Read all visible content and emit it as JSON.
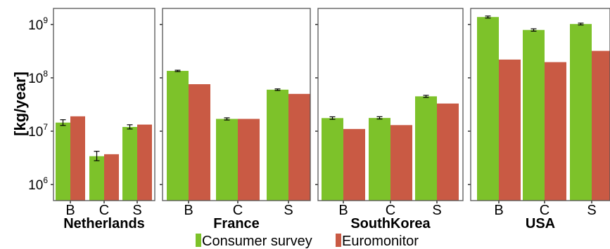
{
  "chart_data": {
    "type": "bar",
    "ylabel": "[kg/year]",
    "yscale": "log",
    "ylim": [
      500000,
      2000000000
    ],
    "yticks": [
      {
        "value": 1000000,
        "base": "10",
        "exp": "6"
      },
      {
        "value": 10000000,
        "base": "10",
        "exp": "7"
      },
      {
        "value": 100000000,
        "base": "10",
        "exp": "8"
      },
      {
        "value": 1000000000,
        "base": "10",
        "exp": "9"
      }
    ],
    "categories": [
      "B",
      "C",
      "S"
    ],
    "series": [
      {
        "name": "Consumer survey",
        "color": "#7dc22a"
      },
      {
        "name": "Euromonitor",
        "color": "#c95a44"
      }
    ],
    "error_color": "#000000",
    "grid": false,
    "legend_position": "bottom",
    "panels": [
      {
        "label": "Netherlands",
        "survey": [
          14500000,
          3400000,
          12000000
        ],
        "survey_err_low": [
          12800000,
          2800000,
          11000000
        ],
        "survey_err_high": [
          16400000,
          4200000,
          13200000
        ],
        "euromonitor": [
          19000000,
          3700000,
          13300000
        ]
      },
      {
        "label": "France",
        "survey": [
          135000000,
          17000000,
          60000000
        ],
        "survey_err_low": [
          131000000,
          16200000,
          58000000
        ],
        "survey_err_high": [
          139000000,
          17800000,
          62000000
        ],
        "euromonitor": [
          76000000,
          17000000,
          50000000
        ]
      },
      {
        "label": "SouthKorea",
        "survey": [
          17600000,
          17700000,
          45000000
        ],
        "survey_err_low": [
          16700000,
          16900000,
          43000000
        ],
        "survey_err_high": [
          18600000,
          18700000,
          47000000
        ],
        "euromonitor": [
          11000000,
          13000000,
          33000000
        ]
      },
      {
        "label": "USA",
        "survey": [
          1380000000,
          790000000,
          1020000000
        ],
        "survey_err_low": [
          1320000000,
          750000000,
          980000000
        ],
        "survey_err_high": [
          1440000000,
          830000000,
          1060000000
        ],
        "euromonitor": [
          220000000,
          197000000,
          320000000
        ]
      }
    ]
  }
}
